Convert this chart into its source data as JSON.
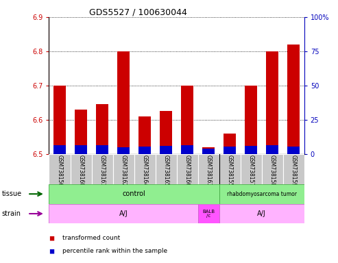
{
  "title": "GDS5527 / 100630044",
  "samples": [
    "GSM738156",
    "GSM738160",
    "GSM738161",
    "GSM738162",
    "GSM738164",
    "GSM738165",
    "GSM738166",
    "GSM738163",
    "GSM738155",
    "GSM738157",
    "GSM738158",
    "GSM738159"
  ],
  "red_values": [
    6.7,
    6.63,
    6.645,
    6.8,
    6.61,
    6.625,
    6.7,
    6.52,
    6.56,
    6.7,
    6.8,
    6.82
  ],
  "blue_heights": [
    0.025,
    0.025,
    0.025,
    0.02,
    0.022,
    0.024,
    0.025,
    0.015,
    0.022,
    0.024,
    0.025,
    0.022
  ],
  "ymin": 6.5,
  "ymax": 6.9,
  "y_ticks": [
    6.5,
    6.6,
    6.7,
    6.8,
    6.9
  ],
  "right_yticks": [
    0,
    25,
    50,
    75,
    100
  ],
  "right_yticklabels": [
    "0",
    "25",
    "50",
    "75",
    "100%"
  ],
  "bar_color": "#CC0000",
  "blue_bar_color": "#0000CC",
  "axis_color_left": "#CC0000",
  "axis_color_right": "#0000BB",
  "bg_color": "#FFFFFF",
  "label_bg": "#CCCCCC",
  "tissue_control_color": "#90EE90",
  "tissue_tumor_color": "#90EE90",
  "strain_aj_color": "#FFB3FF",
  "strain_balb_color": "#FF55FF",
  "tissue_label": "tissue",
  "strain_label": "strain",
  "legend_items": [
    {
      "color": "#CC0000",
      "label": "transformed count"
    },
    {
      "color": "#0000CC",
      "label": "percentile rank within the sample"
    }
  ]
}
